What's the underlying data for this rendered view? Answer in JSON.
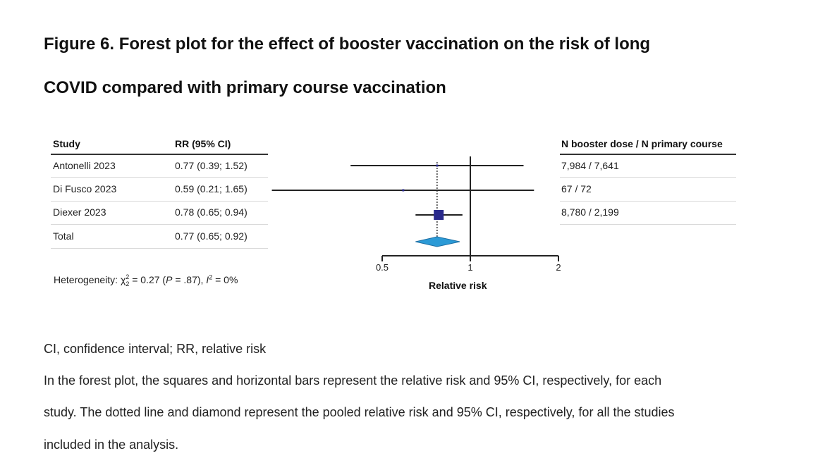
{
  "title": {
    "line1": "Figure 6. Forest plot for the effect of booster vaccination on the risk of long",
    "line2": "COVID compared with primary course vaccination"
  },
  "table": {
    "headers": {
      "study": "Study",
      "rr": "RR (95% CI)",
      "n": "N booster dose / N primary course"
    },
    "rows": [
      {
        "study": "Antonelli 2023",
        "rr": "0.77 (0.39; 1.52)",
        "n": "7,984 / 7,641"
      },
      {
        "study": "Di Fusco 2023",
        "rr": "0.59 (0.21; 1.65)",
        "n": "67 / 72"
      },
      {
        "study": "Diexer 2023",
        "rr": "0.78 (0.65; 0.94)",
        "n": "8,780 / 2,199"
      },
      {
        "study": "Total",
        "rr": "0.77 (0.65; 0.92)",
        "n": ""
      }
    ]
  },
  "heterogeneity": {
    "prefix": "Heterogeneity: χ",
    "chi_sup": "2",
    "chi_sub": "2",
    "mid": " = 0.27 (",
    "p": "P",
    "p_rest": " = .87), ",
    "i": "I",
    "i_sup": "2",
    "i_rest": " = 0%"
  },
  "chart_data": {
    "type": "forest",
    "xlabel": "Relative risk",
    "scale": "log",
    "xlim": [
      0.5,
      2
    ],
    "ticks": [
      0.5,
      1,
      2
    ],
    "tick_labels": [
      "0.5",
      "1",
      "2"
    ],
    "reference_line": 1,
    "studies": [
      {
        "name": "Antonelli 2023",
        "rr": 0.77,
        "lower": 0.39,
        "upper": 1.52
      },
      {
        "name": "Di Fusco 2023",
        "rr": 0.59,
        "lower": 0.21,
        "upper": 1.65
      },
      {
        "name": "Diexer 2023",
        "rr": 0.78,
        "lower": 0.65,
        "upper": 0.94
      }
    ],
    "pooled": {
      "name": "Total",
      "rr": 0.77,
      "lower": 0.65,
      "upper": 0.92
    },
    "colors": {
      "square": "#2a2a8c",
      "diamond": "#2b9ad6",
      "lines": "#222222"
    }
  },
  "notes": {
    "abbrev": "CI, confidence interval; RR, relative risk",
    "line1": "In the forest plot, the squares and horizontal bars represent the relative risk and 95% CI, respectively, for each",
    "line2": "study. The dotted line and diamond represent the pooled relative risk and 95% CI, respectively, for all the studies",
    "line3": "included in the analysis."
  }
}
